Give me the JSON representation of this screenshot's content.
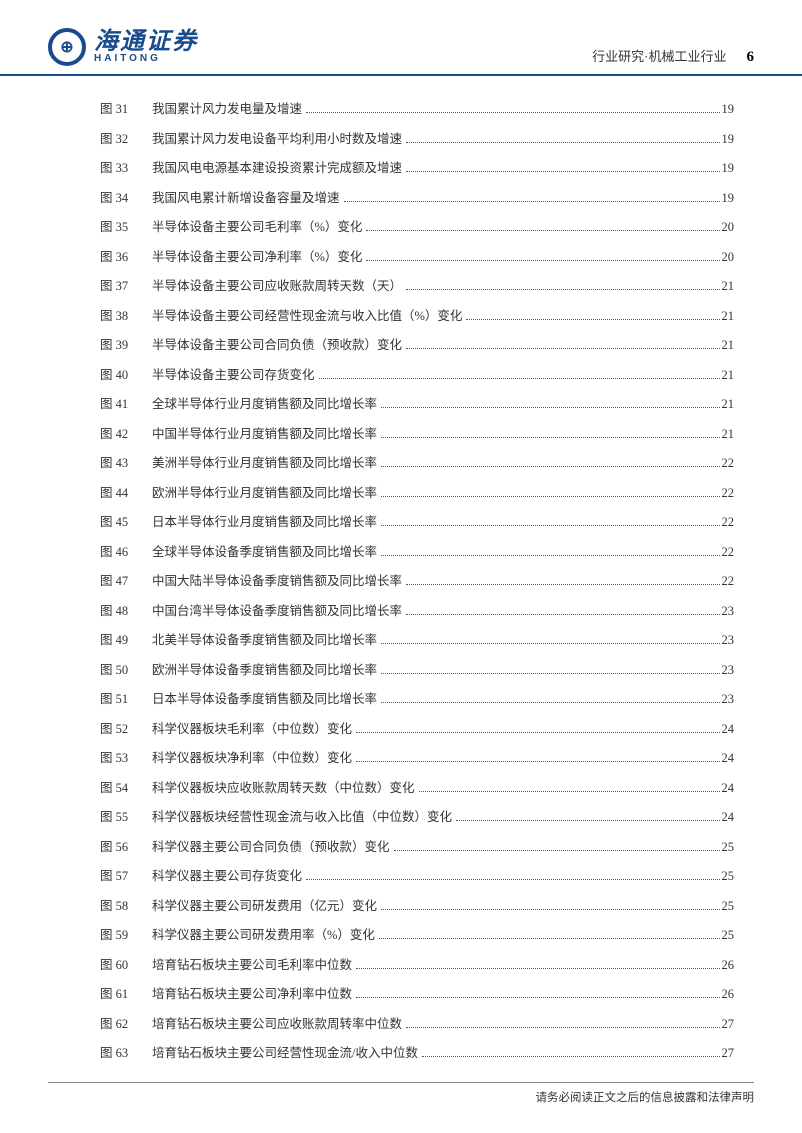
{
  "header": {
    "logo_cn": "海通证券",
    "logo_en": "HAITONG",
    "logo_glyph": "⊕",
    "category": "行业研究·机械工业行业",
    "page_number": "6",
    "colors": {
      "brand": "#1a4b8c",
      "rule": "#1a4b8c"
    }
  },
  "toc": {
    "label_prefix": "图 ",
    "entries": [
      {
        "num": "31",
        "title": "我国累计风力发电量及增速",
        "page": "19"
      },
      {
        "num": "32",
        "title": "我国累计风力发电设备平均利用小时数及增速",
        "page": "19"
      },
      {
        "num": "33",
        "title": "我国风电电源基本建设投资累计完成额及增速",
        "page": "19"
      },
      {
        "num": "34",
        "title": "我国风电累计新增设备容量及增速",
        "page": "19"
      },
      {
        "num": "35",
        "title": "半导体设备主要公司毛利率（%）变化",
        "page": "20"
      },
      {
        "num": "36",
        "title": "半导体设备主要公司净利率（%）变化",
        "page": "20"
      },
      {
        "num": "37",
        "title": "半导体设备主要公司应收账款周转天数（天）",
        "page": "21"
      },
      {
        "num": "38",
        "title": "半导体设备主要公司经营性现金流与收入比值（%）变化",
        "page": "21"
      },
      {
        "num": "39",
        "title": "半导体设备主要公司合同负债（预收款）变化",
        "page": "21"
      },
      {
        "num": "40",
        "title": "半导体设备主要公司存货变化",
        "page": "21"
      },
      {
        "num": "41",
        "title": "全球半导体行业月度销售额及同比增长率",
        "page": "21"
      },
      {
        "num": "42",
        "title": "中国半导体行业月度销售额及同比增长率",
        "page": "21"
      },
      {
        "num": "43",
        "title": "美洲半导体行业月度销售额及同比增长率",
        "page": "22"
      },
      {
        "num": "44",
        "title": "欧洲半导体行业月度销售额及同比增长率",
        "page": "22"
      },
      {
        "num": "45",
        "title": "日本半导体行业月度销售额及同比增长率",
        "page": "22"
      },
      {
        "num": "46",
        "title": "全球半导体设备季度销售额及同比增长率",
        "page": "22"
      },
      {
        "num": "47",
        "title": "中国大陆半导体设备季度销售额及同比增长率",
        "page": "22"
      },
      {
        "num": "48",
        "title": "中国台湾半导体设备季度销售额及同比增长率",
        "page": "23"
      },
      {
        "num": "49",
        "title": "北美半导体设备季度销售额及同比增长率",
        "page": "23"
      },
      {
        "num": "50",
        "title": "欧洲半导体设备季度销售额及同比增长率",
        "page": "23"
      },
      {
        "num": "51",
        "title": "日本半导体设备季度销售额及同比增长率",
        "page": "23"
      },
      {
        "num": "52",
        "title": "科学仪器板块毛利率（中位数）变化",
        "page": "24"
      },
      {
        "num": "53",
        "title": "科学仪器板块净利率（中位数）变化",
        "page": "24"
      },
      {
        "num": "54",
        "title": "科学仪器板块应收账款周转天数（中位数）变化",
        "page": "24"
      },
      {
        "num": "55",
        "title": "科学仪器板块经营性现金流与收入比值（中位数）变化",
        "page": "24"
      },
      {
        "num": "56",
        "title": "科学仪器主要公司合同负债（预收款）变化",
        "page": "25"
      },
      {
        "num": "57",
        "title": "科学仪器主要公司存货变化",
        "page": "25"
      },
      {
        "num": "58",
        "title": "科学仪器主要公司研发费用（亿元）变化",
        "page": "25"
      },
      {
        "num": "59",
        "title": "科学仪器主要公司研发费用率（%）变化",
        "page": "25"
      },
      {
        "num": "60",
        "title": "培育钻石板块主要公司毛利率中位数",
        "page": "26"
      },
      {
        "num": "61",
        "title": "培育钻石板块主要公司净利率中位数",
        "page": "26"
      },
      {
        "num": "62",
        "title": "培育钻石板块主要公司应收账款周转率中位数",
        "page": "27"
      },
      {
        "num": "63",
        "title": "培育钻石板块主要公司经营性现金流/收入中位数",
        "page": "27"
      }
    ],
    "style": {
      "font_size": 12.5,
      "row_gap": 10.5,
      "text_color": "#333333",
      "dot_color": "#555555"
    }
  },
  "footer": {
    "text": "请务必阅读正文之后的信息披露和法律声明",
    "font_size": 11.5,
    "color": "#333333"
  }
}
